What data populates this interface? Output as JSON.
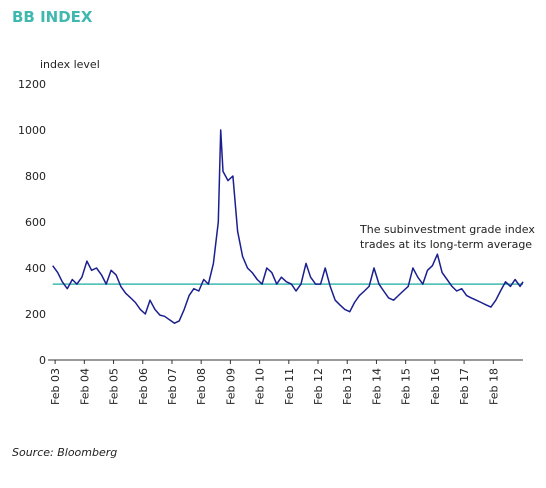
{
  "chart_data": {
    "type": "line",
    "title": "BB INDEX",
    "y_label": "index level",
    "source": "Source: Bloomberg",
    "annotation": [
      "The subinvestment grade index",
      "trades at its long-term average"
    ],
    "average": {
      "value": 330,
      "color": "#3fb8b0"
    },
    "xlim": [
      2003.0,
      2019.1
    ],
    "ylim": [
      0,
      1200
    ],
    "yticks": [
      0,
      200,
      400,
      600,
      800,
      1000,
      1200
    ],
    "xticks": [
      {
        "value": 2003.083,
        "label": "Feb 03"
      },
      {
        "value": 2004.083,
        "label": "Feb 04"
      },
      {
        "value": 2005.083,
        "label": "Feb 05"
      },
      {
        "value": 2006.083,
        "label": "Feb 06"
      },
      {
        "value": 2007.083,
        "label": "Feb 07"
      },
      {
        "value": 2008.083,
        "label": "Feb 08"
      },
      {
        "value": 2009.083,
        "label": "Feb 09"
      },
      {
        "value": 2010.083,
        "label": "Feb 10"
      },
      {
        "value": 2011.083,
        "label": "Feb 11"
      },
      {
        "value": 2012.083,
        "label": "Feb 12"
      },
      {
        "value": 2013.083,
        "label": "Feb 13"
      },
      {
        "value": 2014.083,
        "label": "Feb 14"
      },
      {
        "value": 2015.083,
        "label": "Feb 15"
      },
      {
        "value": 2016.083,
        "label": "Feb 16"
      },
      {
        "value": 2017.083,
        "label": "Feb 17"
      },
      {
        "value": 2018.083,
        "label": "Feb 18"
      }
    ],
    "x": [
      2003.0,
      2003.17,
      2003.33,
      2003.5,
      2003.67,
      2003.83,
      2004.0,
      2004.17,
      2004.33,
      2004.5,
      2004.67,
      2004.83,
      2005.0,
      2005.17,
      2005.33,
      2005.5,
      2005.67,
      2005.83,
      2006.0,
      2006.17,
      2006.33,
      2006.5,
      2006.67,
      2006.83,
      2007.0,
      2007.17,
      2007.33,
      2007.5,
      2007.67,
      2007.83,
      2008.0,
      2008.17,
      2008.33,
      2008.5,
      2008.67,
      2008.75,
      2008.83,
      2009.0,
      2009.17,
      2009.33,
      2009.5,
      2009.67,
      2009.83,
      2010.0,
      2010.17,
      2010.33,
      2010.5,
      2010.67,
      2010.83,
      2011.0,
      2011.17,
      2011.33,
      2011.5,
      2011.67,
      2011.83,
      2012.0,
      2012.17,
      2012.33,
      2012.5,
      2012.67,
      2012.83,
      2013.0,
      2013.17,
      2013.33,
      2013.5,
      2013.67,
      2013.83,
      2014.0,
      2014.17,
      2014.33,
      2014.5,
      2014.67,
      2014.83,
      2015.0,
      2015.17,
      2015.33,
      2015.5,
      2015.67,
      2015.83,
      2016.0,
      2016.17,
      2016.33,
      2016.5,
      2016.67,
      2016.83,
      2017.0,
      2017.17,
      2017.33,
      2017.5,
      2017.67,
      2017.83,
      2018.0,
      2018.17,
      2018.33,
      2018.5,
      2018.67,
      2018.83,
      2019.0,
      2019.1
    ],
    "series": [
      {
        "color": "#1a1f8f",
        "values": [
          410,
          380,
          340,
          310,
          350,
          330,
          360,
          430,
          390,
          400,
          370,
          330,
          390,
          370,
          320,
          290,
          270,
          250,
          220,
          200,
          260,
          220,
          195,
          190,
          175,
          160,
          170,
          220,
          280,
          310,
          300,
          350,
          330,
          420,
          600,
          1000,
          820,
          780,
          800,
          560,
          450,
          400,
          380,
          350,
          330,
          400,
          380,
          330,
          360,
          340,
          330,
          300,
          330,
          420,
          360,
          330,
          330,
          400,
          320,
          260,
          240,
          220,
          210,
          250,
          280,
          300,
          320,
          400,
          330,
          300,
          270,
          260,
          280,
          300,
          320,
          400,
          360,
          330,
          390,
          410,
          460,
          380,
          350,
          320,
          300,
          310,
          280,
          270,
          260,
          250,
          240,
          230,
          260,
          300,
          340,
          320,
          350,
          320,
          340
        ]
      }
    ]
  }
}
